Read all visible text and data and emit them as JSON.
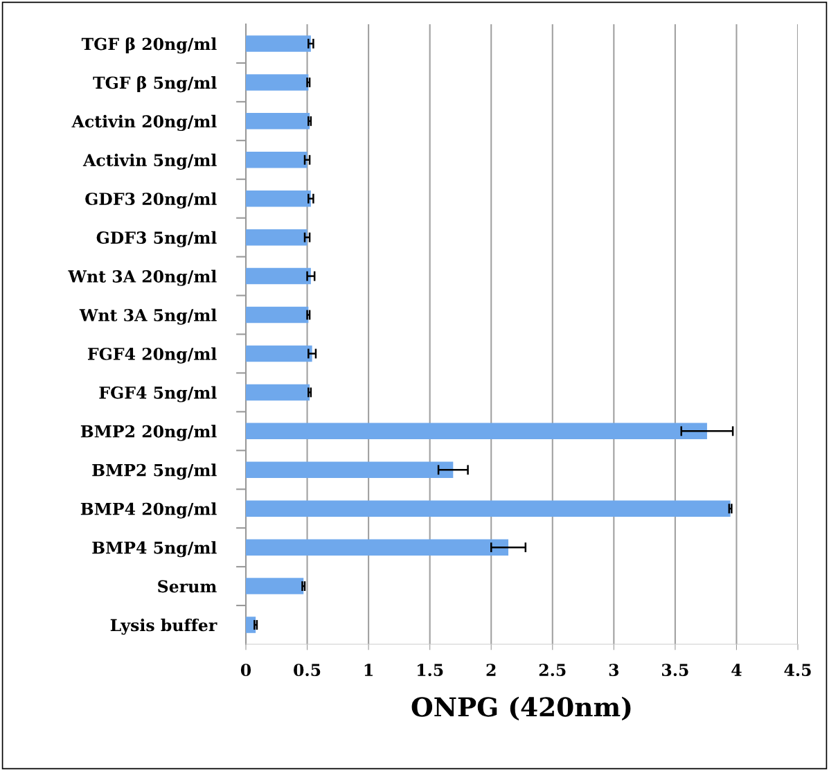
{
  "chart_data": {
    "type": "bar",
    "orientation": "horizontal",
    "xlabel": "ONPG (420nm)",
    "categories": [
      "TGF β 20ng/ml",
      "TGF β 5ng/ml",
      "Activin 20ng/ml",
      "Activin 5ng/ml",
      "GDF3 20ng/ml",
      "GDF3 5ng/ml",
      "Wnt 3A 20ng/ml",
      "Wnt 3A 5ng/ml",
      "FGF4 20ng/ml",
      "FGF4 5ng/ml",
      "BMP2 20ng/ml",
      "BMP2 5ng/ml",
      "BMP4 20ng/ml",
      "BMP4 5ng/ml",
      "Serum",
      "Lysis buffer"
    ],
    "values": [
      0.53,
      0.51,
      0.52,
      0.5,
      0.53,
      0.5,
      0.53,
      0.51,
      0.54,
      0.52,
      3.76,
      1.69,
      3.95,
      2.14,
      0.47,
      0.08
    ],
    "errors": [
      0.02,
      0.01,
      0.01,
      0.02,
      0.02,
      0.02,
      0.03,
      0.01,
      0.03,
      0.01,
      0.21,
      0.12,
      0.01,
      0.14,
      0.01,
      0.01
    ],
    "color": "#6fa8ec",
    "xlim": [
      0,
      4.5
    ],
    "xticks": [
      0,
      0.5,
      1,
      1.5,
      2,
      2.5,
      3,
      3.5,
      4,
      4.5
    ],
    "grid": "x"
  }
}
